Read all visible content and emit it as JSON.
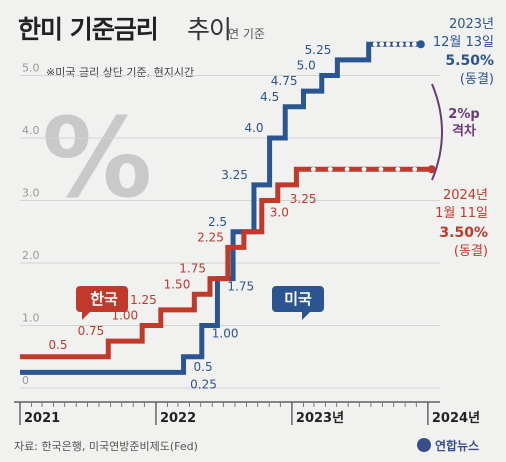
{
  "header": {
    "title_main": "한미 기준금리",
    "title_sub": "추이",
    "unit": "연 기준",
    "note": "※미국 금리 상단 기준, 현지시간"
  },
  "decor": {
    "percent_symbol": "%"
  },
  "chart_data": {
    "type": "line",
    "step": true,
    "ylim": [
      0,
      5.5
    ],
    "yticks": [
      "0",
      "1.0",
      "2.0",
      "3.0",
      "4.0",
      "5.0"
    ],
    "x_ticks": [
      "2021",
      "2022",
      "2023년",
      "2024년"
    ],
    "series": [
      {
        "name": "미국",
        "color": "#2b5591",
        "points": [
          {
            "date": "2021-01-01",
            "value": 0.25
          },
          {
            "date": "2022-03-16",
            "value": 0.5
          },
          {
            "date": "2022-05-04",
            "value": 1.0
          },
          {
            "date": "2022-06-15",
            "value": 1.75
          },
          {
            "date": "2022-07-27",
            "value": 2.5
          },
          {
            "date": "2022-09-21",
            "value": 3.25
          },
          {
            "date": "2022-11-02",
            "value": 4.0
          },
          {
            "date": "2022-12-14",
            "value": 4.5
          },
          {
            "date": "2023-02-01",
            "value": 4.75
          },
          {
            "date": "2023-03-22",
            "value": 5.0
          },
          {
            "date": "2023-05-03",
            "value": 5.25
          },
          {
            "date": "2023-07-26",
            "value": 5.5
          },
          {
            "date": "2023-12-13",
            "value": 5.5
          }
        ],
        "labels": [
          "0.25",
          "0.5",
          "1.00",
          "1.75",
          "2.5",
          "3.25",
          "4.0",
          "4.5",
          "4.75",
          "5.0",
          "5.25"
        ]
      },
      {
        "name": "한국",
        "color": "#c0392b",
        "points": [
          {
            "date": "2021-01-01",
            "value": 0.5
          },
          {
            "date": "2021-08-26",
            "value": 0.75
          },
          {
            "date": "2021-11-25",
            "value": 1.0
          },
          {
            "date": "2022-01-14",
            "value": 1.25
          },
          {
            "date": "2022-04-14",
            "value": 1.5
          },
          {
            "date": "2022-05-26",
            "value": 1.75
          },
          {
            "date": "2022-07-13",
            "value": 2.25
          },
          {
            "date": "2022-08-25",
            "value": 2.5
          },
          {
            "date": "2022-10-12",
            "value": 3.0
          },
          {
            "date": "2022-11-24",
            "value": 3.25
          },
          {
            "date": "2023-01-13",
            "value": 3.5
          },
          {
            "date": "2024-01-11",
            "value": 3.5
          }
        ],
        "labels": [
          "0.5",
          "0.75",
          "1.00",
          "1.25",
          "1.50",
          "1.75",
          "2.25",
          "3.0",
          "3.25"
        ]
      }
    ]
  },
  "annotations": {
    "us": {
      "date_line1": "2023년",
      "date_line2": "12월 13일",
      "rate": "5.50%",
      "status": "(동결)"
    },
    "kr": {
      "date_line1": "2024년",
      "date_line2": "1월 11일",
      "rate": "3.50%",
      "status": "(동결)"
    },
    "gap": {
      "line1": "2%p",
      "line2": "격차"
    }
  },
  "legend_tags": {
    "kr": "한국",
    "us": "미국"
  },
  "footer": {
    "source": "자료: 한국은행, 미국연방준비제도(Fed)",
    "logo": "연합뉴스"
  },
  "colors": {
    "us": "#2b5591",
    "kr": "#c0392b",
    "gap": "#6b3a78",
    "background": "#f1f1ef"
  }
}
